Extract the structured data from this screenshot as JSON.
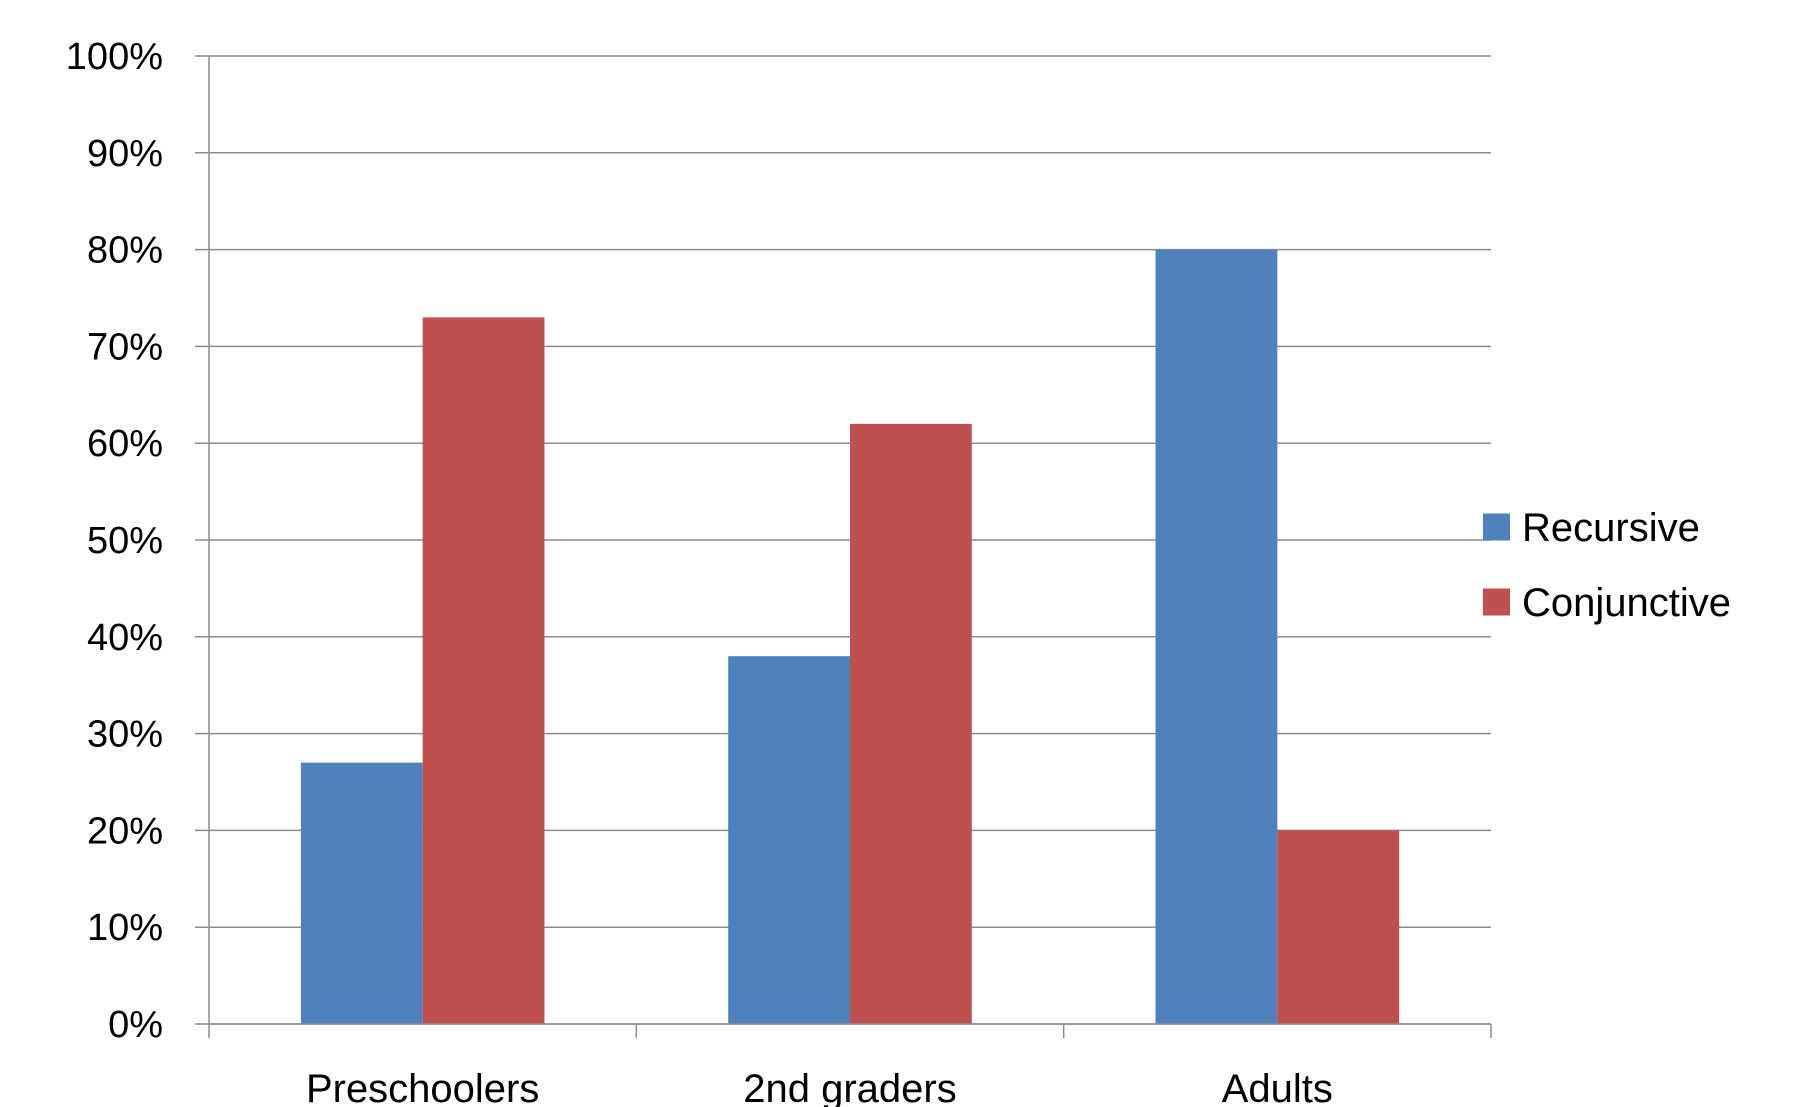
{
  "chart_data": {
    "type": "bar",
    "title": "",
    "xlabel": "",
    "ylabel": "",
    "categories": [
      "Preschoolers",
      "2nd graders",
      "Adults"
    ],
    "series": [
      {
        "name": "Recursive",
        "values": [
          27,
          38,
          80
        ],
        "color": "#4F81BD"
      },
      {
        "name": "Conjunctive",
        "values": [
          73,
          62,
          20
        ],
        "color": "#C0504D"
      }
    ],
    "ylim": [
      0,
      100
    ],
    "yticks": [
      "0%",
      "10%",
      "20%",
      "30%",
      "40%",
      "50%",
      "60%",
      "70%",
      "80%",
      "90%",
      "100%"
    ],
    "grid": true,
    "legend_position": "right"
  }
}
